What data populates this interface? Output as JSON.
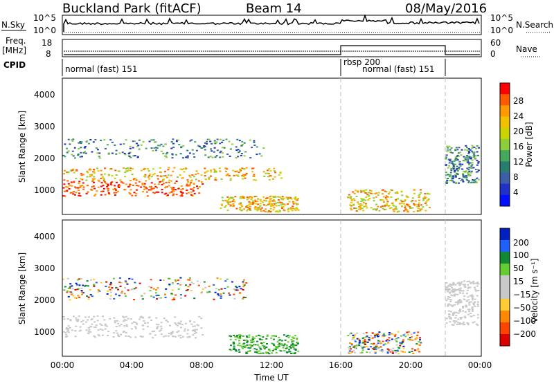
{
  "header": {
    "station": "Buckland Park (fitACF)",
    "beam": "Beam 14",
    "date": "08/May/2016"
  },
  "side_labels": {
    "nsky": "N.Sky",
    "freq": "Freq.",
    "freq_unit": "[MHz]",
    "cpid": "CPID",
    "nsearch": "N.Search",
    "nave": "Nave"
  },
  "small_axes": {
    "nsky_ticks": [
      "10^5",
      "10^0"
    ],
    "nsearch_ticks": [
      "10^5",
      "10^0"
    ],
    "freq_ticks": [
      "18",
      "8"
    ],
    "nave_ticks": [
      "60",
      "0"
    ]
  },
  "cpid_segments": [
    {
      "label": "normal (fast) 151",
      "start_hour": 0
    },
    {
      "label": "rbsp 200",
      "start_hour": 16
    },
    {
      "label": "normal (fast) 151",
      "start_hour": 16.4
    }
  ],
  "chart_data": [
    {
      "type": "heatmap",
      "name": "power-panel",
      "xlabel": "Time UT",
      "ylabel": "Slant Range [km]",
      "ylim": [
        200,
        4500
      ],
      "xlim": [
        0,
        24
      ],
      "yticks": [
        "4000",
        "3000",
        "2000",
        "1000"
      ],
      "colorbar": {
        "label": "Power [dB]",
        "ticks": [
          "28",
          "24",
          "20",
          "16",
          "12",
          "8",
          "4"
        ],
        "colors": [
          "#ff0000",
          "#ff5a00",
          "#ff9900",
          "#f2c200",
          "#c9d400",
          "#8ccf3a",
          "#46a85a",
          "#2a7d6e",
          "#3c5ea8",
          "#2030c8",
          "#0010ff"
        ]
      },
      "regions": [
        {
          "t0": 0.0,
          "t1": 8.0,
          "r0": 800,
          "r1": 1300,
          "level": "high"
        },
        {
          "t0": 0.0,
          "t1": 12.5,
          "r0": 1300,
          "r1": 1700,
          "level": "mid"
        },
        {
          "t0": 0.0,
          "t1": 11.5,
          "r0": 2000,
          "r1": 2600,
          "level": "low"
        },
        {
          "t0": 9.0,
          "t1": 13.5,
          "r0": 300,
          "r1": 800,
          "level": "mid"
        },
        {
          "t0": 16.3,
          "t1": 21.0,
          "r0": 300,
          "r1": 1000,
          "level": "mid"
        },
        {
          "t0": 21.9,
          "t1": 23.8,
          "r0": 1200,
          "r1": 2400,
          "level": "low"
        }
      ]
    },
    {
      "type": "heatmap",
      "name": "velocity-panel",
      "xlabel": "Time UT",
      "ylabel": "Slant Range [km]",
      "ylim": [
        200,
        4500
      ],
      "xlim": [
        0,
        24
      ],
      "yticks": [
        "4000",
        "3000",
        "2000",
        "1000"
      ],
      "xticks": [
        "00:00",
        "04:00",
        "08:00",
        "12:00",
        "16:00",
        "20:00",
        "00:00"
      ],
      "colorbar": {
        "label": "Velocity [m s⁻¹]",
        "ticks": [
          "200",
          "100",
          "50",
          "15",
          "−15",
          "−50",
          "−100",
          "−200"
        ],
        "colors": [
          "#0020c0",
          "#2060ff",
          "#118833",
          "#66cc33",
          "#c8c8c8",
          "#c8c8c8",
          "#ffcc33",
          "#ff8800",
          "#ff4400",
          "#dd0000"
        ]
      },
      "regions": [
        {
          "t0": 0.0,
          "t1": 8.0,
          "r0": 800,
          "r1": 1500,
          "level": "grey"
        },
        {
          "t0": 0.0,
          "t1": 10.5,
          "r0": 2000,
          "r1": 2700,
          "level": "mixed"
        },
        {
          "t0": 9.5,
          "t1": 13.5,
          "r0": 300,
          "r1": 900,
          "level": "green"
        },
        {
          "t0": 16.3,
          "t1": 20.5,
          "r0": 300,
          "r1": 1000,
          "level": "mixed"
        },
        {
          "t0": 21.9,
          "t1": 23.8,
          "r0": 1200,
          "r1": 2600,
          "level": "grey"
        }
      ]
    }
  ]
}
